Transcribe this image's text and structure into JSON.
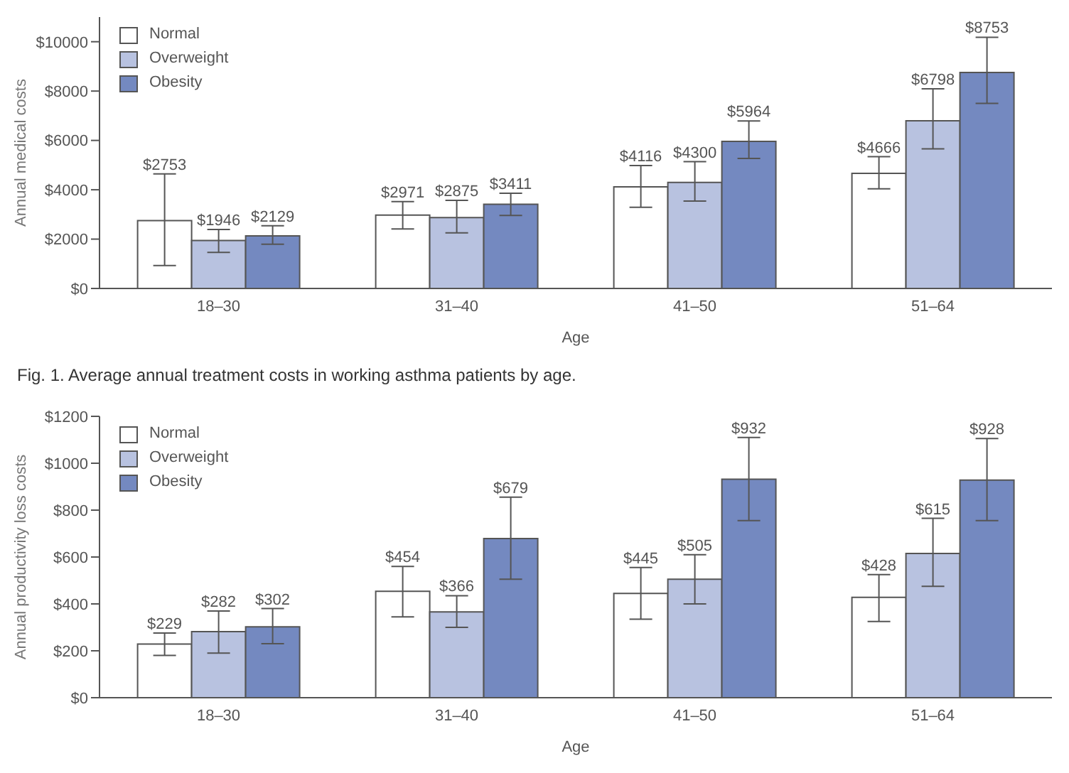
{
  "chart_data": [
    {
      "type": "bar",
      "xlabel": "Age",
      "ylabel": "Annual medical costs",
      "categories": [
        "18–30",
        "31–40",
        "41–50",
        "51–64"
      ],
      "series": [
        {
          "name": "Normal",
          "color": "#ffffff",
          "values": [
            2753,
            2971,
            4116,
            4666
          ],
          "errors": [
            [
              929,
              4640
            ],
            [
              2410,
              3520
            ],
            [
              3290,
              4980
            ],
            [
              4040,
              5340
            ]
          ],
          "value_labels": [
            "$2753",
            "$2971",
            "$4116",
            "$4666"
          ]
        },
        {
          "name": "Overweight",
          "color": "#b8c2e0",
          "values": [
            1946,
            2875,
            4300,
            6798
          ],
          "errors": [
            [
              1460,
              2390
            ],
            [
              2250,
              3570
            ],
            [
              3540,
              5140
            ],
            [
              5660,
              8090
            ]
          ],
          "value_labels": [
            "$1946",
            "$2875",
            "$4300",
            "$6798"
          ]
        },
        {
          "name": "Obesity",
          "color": "#7489c0",
          "values": [
            2129,
            3411,
            5964,
            8753
          ],
          "errors": [
            [
              1790,
              2540
            ],
            [
              2960,
              3860
            ],
            [
              5270,
              6790
            ],
            [
              7500,
              10180
            ]
          ],
          "value_labels": [
            "$2129",
            "$3411",
            "$5964",
            "$8753"
          ]
        }
      ],
      "ylim": [
        0,
        11000
      ],
      "yticks": [
        {
          "value": 0,
          "label": "$0"
        },
        {
          "value": 2000,
          "label": "$2000"
        },
        {
          "value": 4000,
          "label": "$4000"
        },
        {
          "value": 6000,
          "label": "$6000"
        },
        {
          "value": 8000,
          "label": "$8000"
        },
        {
          "value": 10000,
          "label": "$10000"
        }
      ],
      "grid": false,
      "legend": "top left",
      "annotations": [
        "Fig. 1. Average annual treatment costs in working asthma patients by age."
      ]
    },
    {
      "type": "bar",
      "xlabel": "Age",
      "ylabel": "Annual productivity loss costs",
      "categories": [
        "18–30",
        "31–40",
        "41–50",
        "51–64"
      ],
      "series": [
        {
          "name": "Normal",
          "color": "#ffffff",
          "values": [
            229,
            454,
            445,
            428
          ],
          "errors": [
            [
              180,
              276
            ],
            [
              345,
              560
            ],
            [
              335,
              555
            ],
            [
              325,
              525
            ]
          ],
          "value_labels": [
            "$229",
            "$454",
            "$445",
            "$428"
          ]
        },
        {
          "name": "Overweight",
          "color": "#b8c2e0",
          "values": [
            282,
            366,
            505,
            615
          ],
          "errors": [
            [
              190,
              370
            ],
            [
              300,
              435
            ],
            [
              400,
              610
            ],
            [
              475,
              765
            ]
          ],
          "value_labels": [
            "$282",
            "$366",
            "$505",
            "$615"
          ]
        },
        {
          "name": "Obesity",
          "color": "#7489c0",
          "values": [
            302,
            679,
            932,
            928
          ],
          "errors": [
            [
              230,
              380
            ],
            [
              505,
              855
            ],
            [
              755,
              1110
            ],
            [
              755,
              1105
            ]
          ],
          "value_labels": [
            "$302",
            "$679",
            "$932",
            "$928"
          ]
        }
      ],
      "ylim": [
        0,
        1200
      ],
      "yticks": [
        {
          "value": 0,
          "label": "$0"
        },
        {
          "value": 200,
          "label": "$200"
        },
        {
          "value": 400,
          "label": "$400"
        },
        {
          "value": 600,
          "label": "$600"
        },
        {
          "value": 800,
          "label": "$800"
        },
        {
          "value": 1000,
          "label": "$1000"
        },
        {
          "value": 1200,
          "label": "$1200"
        }
      ],
      "grid": false,
      "legend": "top left"
    }
  ]
}
